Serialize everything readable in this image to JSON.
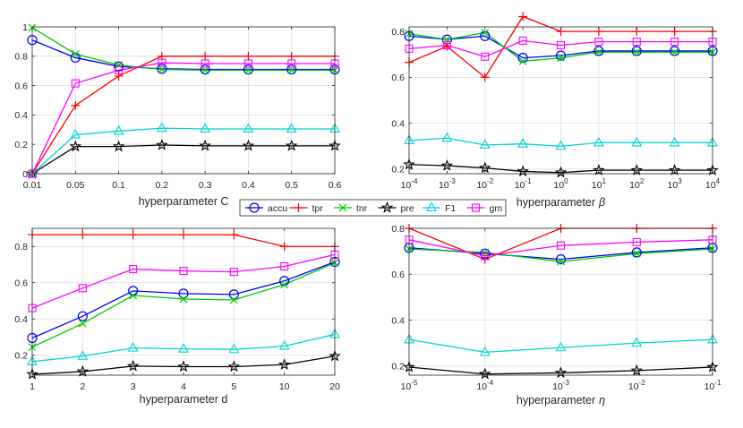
{
  "colors": {
    "accu": "#0000ff",
    "tpr": "#ff0000",
    "tnr": "#00cc00",
    "pre": "#000000",
    "F1": "#00d4d4",
    "gm": "#ff00ff"
  },
  "legend": {
    "entries": [
      {
        "key": "accu",
        "label": "accu",
        "marker": "circle"
      },
      {
        "key": "tpr",
        "label": "tpr",
        "marker": "plus"
      },
      {
        "key": "tnr",
        "label": "tnr",
        "marker": "cross"
      },
      {
        "key": "pre",
        "label": "pre",
        "marker": "star"
      },
      {
        "key": "F1",
        "label": "F1",
        "marker": "triangle"
      },
      {
        "key": "gm",
        "label": "gm",
        "marker": "square"
      }
    ]
  },
  "chart_data": [
    {
      "type": "line",
      "id": "C",
      "xlabel": "hyperparameter C",
      "xlabel_symbol": "",
      "x_tick_labels": [
        "0.01",
        "0.05",
        "0.1",
        "0.2",
        "0.3",
        "0.4",
        "0.5",
        "0.6"
      ],
      "ylim": [
        0,
        1
      ],
      "y_ticks": [
        0,
        0.2,
        0.4,
        0.6,
        0.8,
        1
      ],
      "y_tick_labels": [
        "0",
        "0.2",
        "0.4",
        "0.6",
        "0.8",
        "1"
      ],
      "grid": true,
      "series": [
        {
          "name": "accu",
          "values": [
            0.91,
            0.79,
            0.73,
            0.715,
            0.71,
            0.71,
            0.71,
            0.71
          ]
        },
        {
          "name": "tpr",
          "values": [
            0.0,
            0.465,
            0.665,
            0.8,
            0.8,
            0.8,
            0.8,
            0.8
          ]
        },
        {
          "name": "tnr",
          "values": [
            0.995,
            0.815,
            0.74,
            0.71,
            0.705,
            0.705,
            0.705,
            0.705
          ]
        },
        {
          "name": "pre",
          "values": [
            0.0,
            0.185,
            0.185,
            0.195,
            0.19,
            0.19,
            0.19,
            0.19
          ]
        },
        {
          "name": "F1",
          "values": [
            0.0,
            0.265,
            0.29,
            0.31,
            0.305,
            0.305,
            0.305,
            0.305
          ]
        },
        {
          "name": "gm",
          "values": [
            0.0,
            0.615,
            0.705,
            0.755,
            0.75,
            0.75,
            0.75,
            0.75
          ]
        }
      ]
    },
    {
      "type": "line",
      "id": "beta",
      "xlabel": "hyperparameter",
      "xlabel_symbol": "β",
      "x_tick_labels": [
        [
          "10",
          "-4"
        ],
        [
          "10",
          "-3"
        ],
        [
          "10",
          "-2"
        ],
        [
          "10",
          "-1"
        ],
        [
          "10",
          "0"
        ],
        [
          "10",
          "1"
        ],
        [
          "10",
          "2"
        ],
        [
          "10",
          "3"
        ],
        [
          "10",
          "4"
        ]
      ],
      "ylim": [
        0.18,
        0.82
      ],
      "y_ticks": [
        0.2,
        0.4,
        0.6,
        0.8
      ],
      "y_tick_labels": [
        "0.2",
        "0.4",
        "0.6",
        "0.8"
      ],
      "grid": true,
      "series": [
        {
          "name": "accu",
          "values": [
            0.78,
            0.765,
            0.78,
            0.685,
            0.695,
            0.715,
            0.715,
            0.715,
            0.715
          ]
        },
        {
          "name": "tpr",
          "values": [
            0.665,
            0.735,
            0.6,
            0.865,
            0.8,
            0.8,
            0.8,
            0.8,
            0.8
          ]
        },
        {
          "name": "tnr",
          "values": [
            0.79,
            0.765,
            0.795,
            0.67,
            0.685,
            0.71,
            0.71,
            0.71,
            0.71
          ]
        },
        {
          "name": "pre",
          "values": [
            0.22,
            0.215,
            0.205,
            0.19,
            0.185,
            0.195,
            0.195,
            0.195,
            0.195
          ]
        },
        {
          "name": "F1",
          "values": [
            0.325,
            0.335,
            0.305,
            0.31,
            0.3,
            0.315,
            0.315,
            0.315,
            0.315
          ]
        },
        {
          "name": "gm",
          "values": [
            0.725,
            0.74,
            0.69,
            0.76,
            0.74,
            0.755,
            0.755,
            0.755,
            0.755
          ]
        }
      ]
    },
    {
      "type": "line",
      "id": "d",
      "xlabel": "hyperparameter d",
      "xlabel_symbol": "",
      "x_tick_labels": [
        "1",
        "2",
        "3",
        "4",
        "5",
        "10",
        "20"
      ],
      "ylim": [
        0.09,
        0.9
      ],
      "y_ticks": [
        0.2,
        0.4,
        0.6,
        0.8
      ],
      "y_tick_labels": [
        "0.2",
        "0.4",
        "0.6",
        "0.8"
      ],
      "grid": true,
      "series": [
        {
          "name": "accu",
          "values": [
            0.295,
            0.415,
            0.555,
            0.54,
            0.535,
            0.61,
            0.715
          ]
        },
        {
          "name": "tpr",
          "values": [
            0.865,
            0.865,
            0.865,
            0.865,
            0.865,
            0.8,
            0.8
          ]
        },
        {
          "name": "tnr",
          "values": [
            0.245,
            0.375,
            0.53,
            0.51,
            0.505,
            0.59,
            0.71
          ]
        },
        {
          "name": "pre",
          "values": [
            0.095,
            0.11,
            0.14,
            0.137,
            0.137,
            0.148,
            0.195
          ]
        },
        {
          "name": "F1",
          "values": [
            0.165,
            0.195,
            0.24,
            0.235,
            0.232,
            0.25,
            0.315
          ]
        },
        {
          "name": "gm",
          "values": [
            0.46,
            0.57,
            0.675,
            0.665,
            0.66,
            0.69,
            0.755
          ]
        }
      ]
    },
    {
      "type": "line",
      "id": "eta",
      "xlabel": "hyperparameter",
      "xlabel_symbol": "η",
      "x_tick_labels": [
        [
          "10",
          "-5"
        ],
        [
          "10",
          "-4"
        ],
        [
          "10",
          "-3"
        ],
        [
          "10",
          "-2"
        ],
        [
          "10",
          "-1"
        ]
      ],
      "ylim": [
        0.16,
        0.8
      ],
      "y_ticks": [
        0.2,
        0.4,
        0.6,
        0.8
      ],
      "y_tick_labels": [
        "0.2",
        "0.4",
        "0.6",
        "0.8"
      ],
      "grid": true,
      "series": [
        {
          "name": "accu",
          "values": [
            0.715,
            0.69,
            0.665,
            0.695,
            0.715
          ]
        },
        {
          "name": "tpr",
          "values": [
            0.8,
            0.665,
            0.8,
            0.8,
            0.8
          ]
        },
        {
          "name": "tnr",
          "values": [
            0.71,
            0.695,
            0.655,
            0.69,
            0.71
          ]
        },
        {
          "name": "pre",
          "values": [
            0.195,
            0.165,
            0.17,
            0.18,
            0.195
          ]
        },
        {
          "name": "F1",
          "values": [
            0.315,
            0.26,
            0.28,
            0.3,
            0.315
          ]
        },
        {
          "name": "gm",
          "values": [
            0.75,
            0.68,
            0.725,
            0.74,
            0.75
          ]
        }
      ]
    }
  ]
}
